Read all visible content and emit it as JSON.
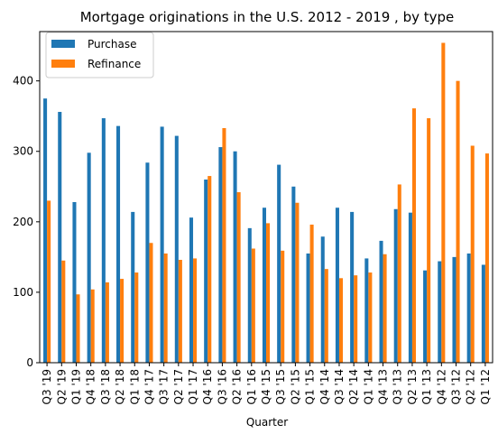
{
  "chart_data": {
    "type": "bar",
    "title": "Mortgage originations in the U.S. 2012 - 2019 , by type",
    "xlabel": "Quarter",
    "ylabel": "",
    "ylim": [
      0,
      470
    ],
    "yticks": [
      0,
      100,
      200,
      300,
      400
    ],
    "grid": false,
    "legend_position": "top-left",
    "categories": [
      "Q3 '19",
      "Q2 '19",
      "Q1 '19",
      "Q4 '18",
      "Q3 '18",
      "Q2 '18",
      "Q1 '18",
      "Q4 '17",
      "Q3 '17",
      "Q2 '17",
      "Q1 '17",
      "Q4 '16",
      "Q3 '16",
      "Q2 '16",
      "Q1 '16",
      "Q4 '15",
      "Q3 '15",
      "Q2 '15",
      "Q1 '15",
      "Q4 '14",
      "Q3 '14",
      "Q2 '14",
      "Q1 '14",
      "Q4 '13",
      "Q3 '13",
      "Q2 '13",
      "Q1 '13",
      "Q4 '12",
      "Q3 '12",
      "Q2 '12",
      "Q1 '12"
    ],
    "series": [
      {
        "name": "Purchase",
        "color": "#1f77b4",
        "values": [
          375,
          356,
          228,
          298,
          347,
          336,
          214,
          284,
          335,
          322,
          206,
          260,
          306,
          300,
          191,
          220,
          281,
          250,
          155,
          179,
          220,
          214,
          148,
          173,
          218,
          213,
          131,
          144,
          150,
          155,
          139
        ]
      },
      {
        "name": "Refinance",
        "color": "#ff7f0e",
        "values": [
          230,
          145,
          97,
          104,
          114,
          119,
          128,
          170,
          155,
          146,
          148,
          265,
          333,
          242,
          162,
          198,
          159,
          227,
          196,
          133,
          120,
          124,
          128,
          154,
          253,
          361,
          347,
          454,
          400,
          308,
          297
        ]
      }
    ]
  }
}
